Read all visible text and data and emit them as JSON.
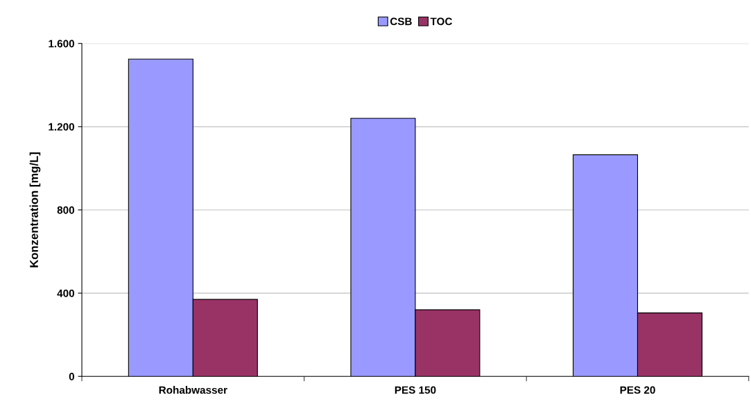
{
  "chart_data": {
    "type": "bar",
    "ylabel": "Konzentration [mg/L]",
    "categories": [
      "Rohabwasser",
      "PES 150",
      "PES 20"
    ],
    "series": [
      {
        "name": "CSB",
        "color": "#9999ff",
        "values": [
          1525,
          1240,
          1065
        ]
      },
      {
        "name": "TOC",
        "color": "#993366",
        "values": [
          370,
          320,
          305
        ]
      }
    ],
    "ylim": [
      0,
      1600
    ],
    "yticks": [
      0,
      {
        "value": 400,
        "label": "400"
      },
      {
        "value": 800,
        "label": "800"
      },
      {
        "value": 1200,
        "label": "1.200"
      },
      {
        "value": 1600,
        "label": "1.600"
      }
    ],
    "grid": "y",
    "legend": "top"
  }
}
